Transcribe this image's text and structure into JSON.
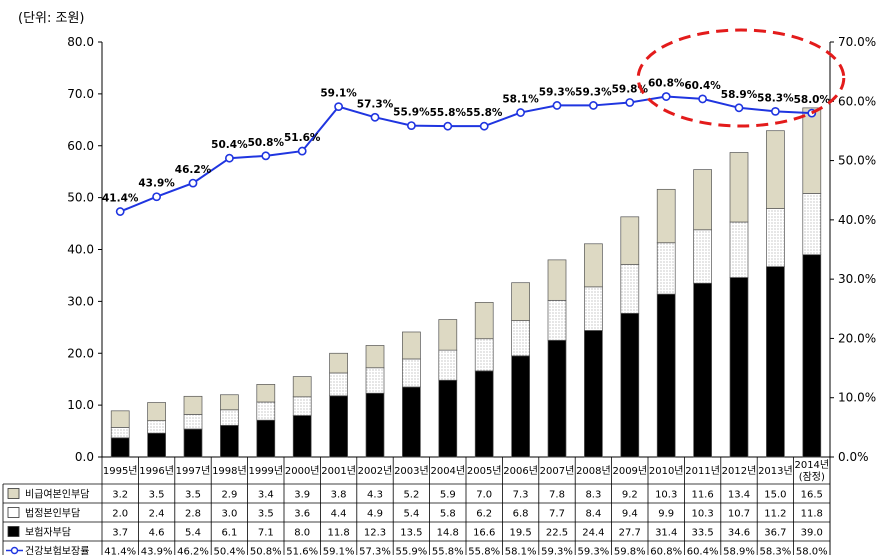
{
  "chart_data": {
    "type": "bar",
    "unit_label": "(단위: 조원)",
    "categories": [
      "1995년",
      "1996년",
      "1997년",
      "1998년",
      "1999년",
      "2000년",
      "2001년",
      "2002년",
      "2003년",
      "2004년",
      "2005년",
      "2006년",
      "2007년",
      "2008년",
      "2009년",
      "2010년",
      "2011년",
      "2012년",
      "2013년",
      "2014년 (잠정)"
    ],
    "ylim": [
      0,
      80
    ],
    "y_ticks": [
      "0.0",
      "10.0",
      "20.0",
      "30.0",
      "40.0",
      "50.0",
      "60.0",
      "70.0",
      "80.0"
    ],
    "y2lim": [
      0,
      70
    ],
    "y2_ticks": [
      "0.0%",
      "10.0%",
      "20.0%",
      "30.0%",
      "40.0%",
      "50.0%",
      "60.0%",
      "70.0%"
    ],
    "grid": false,
    "legend_position": "table-left",
    "series": [
      {
        "name": "보험자부담",
        "kind": "bar",
        "color": "#000000",
        "values": [
          3.7,
          4.6,
          5.4,
          6.1,
          7.1,
          8.0,
          11.8,
          12.3,
          13.5,
          14.8,
          16.6,
          19.5,
          22.5,
          24.4,
          27.7,
          31.4,
          33.5,
          34.6,
          36.7,
          39.0
        ]
      },
      {
        "name": "법정본인부담",
        "kind": "bar",
        "color": "#ffffff",
        "values": [
          2.0,
          2.4,
          2.8,
          3.0,
          3.5,
          3.6,
          4.4,
          4.9,
          5.4,
          5.8,
          6.2,
          6.8,
          7.7,
          8.4,
          9.4,
          9.9,
          10.3,
          10.7,
          11.2,
          11.8
        ]
      },
      {
        "name": "비급여본인부담",
        "kind": "bar",
        "color": "#ddd9c3",
        "values": [
          3.2,
          3.5,
          3.5,
          2.9,
          3.4,
          3.9,
          3.8,
          4.3,
          5.2,
          5.9,
          7.0,
          7.3,
          7.8,
          8.3,
          9.2,
          10.3,
          11.6,
          13.4,
          15.0,
          16.5
        ]
      },
      {
        "name": "건강보험보장률",
        "kind": "line",
        "axis": "right",
        "color": "#1f35e0",
        "values": [
          41.4,
          43.9,
          46.2,
          50.4,
          50.8,
          51.6,
          59.1,
          57.3,
          55.9,
          55.8,
          55.8,
          58.1,
          59.3,
          59.3,
          59.8,
          60.8,
          60.4,
          58.9,
          58.3,
          58.0
        ]
      }
    ],
    "table_rows": [
      {
        "label": "비급여본인부담",
        "values": [
          "3.2",
          "3.5",
          "3.5",
          "2.9",
          "3.4",
          "3.9",
          "3.8",
          "4.3",
          "5.2",
          "5.9",
          "7.0",
          "7.3",
          "7.8",
          "8.3",
          "9.2",
          "10.3",
          "11.6",
          "13.4",
          "15.0",
          "16.5"
        ]
      },
      {
        "label": "법정본인부담",
        "values": [
          "2.0",
          "2.4",
          "2.8",
          "3.0",
          "3.5",
          "3.6",
          "4.4",
          "4.9",
          "5.4",
          "5.8",
          "6.2",
          "6.8",
          "7.7",
          "8.4",
          "9.4",
          "9.9",
          "10.3",
          "10.7",
          "11.2",
          "11.8"
        ]
      },
      {
        "label": "보험자부담",
        "values": [
          "3.7",
          "4.6",
          "5.4",
          "6.1",
          "7.1",
          "8.0",
          "11.8",
          "12.3",
          "13.5",
          "14.8",
          "16.6",
          "19.5",
          "22.5",
          "24.4",
          "27.7",
          "31.4",
          "33.5",
          "34.6",
          "36.7",
          "39.0"
        ]
      },
      {
        "label": "건강보험보장률",
        "values": [
          "41.4%",
          "43.9%",
          "46.2%",
          "50.4%",
          "50.8%",
          "51.6%",
          "59.1%",
          "57.3%",
          "55.9%",
          "55.8%",
          "55.8%",
          "58.1%",
          "59.3%",
          "59.3%",
          "59.8%",
          "60.8%",
          "60.4%",
          "58.9%",
          "58.3%",
          "58.0%"
        ]
      }
    ],
    "line_labels": [
      "41.4%",
      "43.9%",
      "46.2%",
      "50.4%",
      "50.8%",
      "51.6%",
      "59.1%",
      "57.3%",
      "55.9%",
      "55.8%",
      "55.8%",
      "58.1%",
      "59.3%",
      "59.3%",
      "59.8%",
      "60.8%",
      "60.4%",
      "58.9%",
      "58.3%",
      "58.0%"
    ],
    "highlight": {
      "shape": "dashed-ellipse",
      "color": "#e31b1b",
      "from_category": 15,
      "to_category": 19
    }
  }
}
